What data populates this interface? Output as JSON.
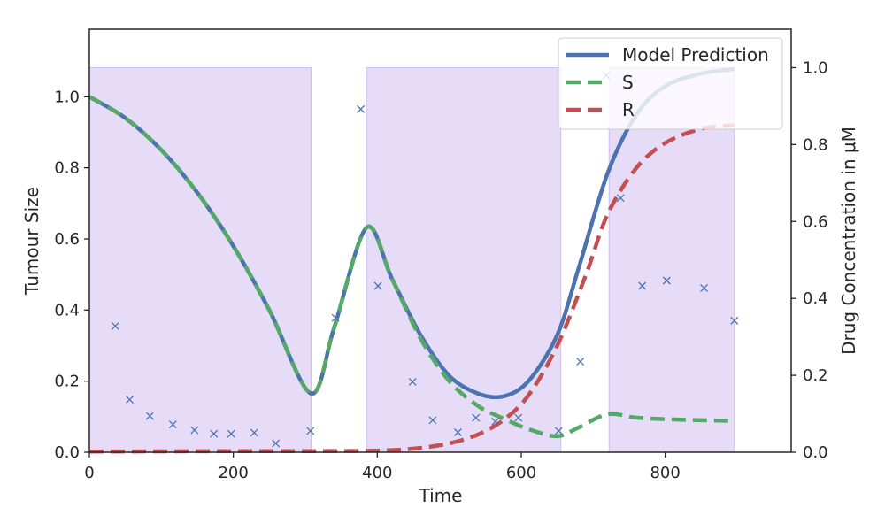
{
  "chart_data": {
    "type": "line",
    "xlabel": "Time",
    "ylabel": "Tumour Size",
    "y2label": "Drug Concentration in μM",
    "xlim": [
      0,
      975
    ],
    "ylim": [
      0,
      1.19
    ],
    "y2lim": [
      0,
      1.1
    ],
    "xticks": [
      0,
      200,
      400,
      600,
      800
    ],
    "yticks": [
      0.0,
      0.2,
      0.4,
      0.6,
      0.8,
      1.0
    ],
    "y2ticks": [
      0.0,
      0.2,
      0.4,
      0.6,
      0.8,
      1.0
    ],
    "grid": false,
    "legend_position": "top-right",
    "treatment_periods": [
      {
        "start": 0,
        "end": 308,
        "concentration": 1.0
      },
      {
        "start": 385,
        "end": 655,
        "concentration": 1.0
      },
      {
        "start": 722,
        "end": 896,
        "concentration": 1.0
      }
    ],
    "series": [
      {
        "name": "Model Prediction",
        "style": "solid",
        "color": "#4c72b0",
        "x": [
          0,
          50,
          100,
          150,
          200,
          250,
          308,
          340,
          385,
          420,
          460,
          500,
          540,
          575,
          610,
          650,
          680,
          720,
          760,
          800,
          850,
          896
        ],
        "y": [
          1.0,
          0.94,
          0.85,
          0.73,
          0.58,
          0.4,
          0.165,
          0.35,
          0.632,
          0.49,
          0.33,
          0.215,
          0.165,
          0.157,
          0.2,
          0.33,
          0.52,
          0.785,
          0.95,
          1.03,
          1.065,
          1.078
        ]
      },
      {
        "name": "S",
        "style": "dashed",
        "color": "#55a868",
        "x": [
          0,
          50,
          100,
          150,
          200,
          250,
          308,
          340,
          385,
          420,
          460,
          500,
          540,
          575,
          610,
          650,
          680,
          720,
          760,
          800,
          850,
          896
        ],
        "y": [
          1.0,
          0.94,
          0.85,
          0.73,
          0.58,
          0.4,
          0.165,
          0.35,
          0.632,
          0.49,
          0.32,
          0.2,
          0.13,
          0.095,
          0.065,
          0.045,
          0.07,
          0.107,
          0.097,
          0.093,
          0.09,
          0.088
        ]
      },
      {
        "name": "R",
        "style": "dashed",
        "color": "#c44e52",
        "x": [
          0,
          200,
          385,
          450,
          500,
          540,
          575,
          610,
          650,
          690,
          720,
          760,
          800,
          850,
          896
        ],
        "y": [
          0.002,
          0.003,
          0.004,
          0.01,
          0.025,
          0.05,
          0.09,
          0.16,
          0.3,
          0.5,
          0.67,
          0.8,
          0.87,
          0.91,
          0.92
        ]
      }
    ],
    "measurements": {
      "marker": "x",
      "color": "#4c72b0",
      "x": [
        36,
        56,
        84,
        116,
        146,
        173,
        197,
        229,
        259,
        307,
        342,
        377,
        401,
        449,
        477,
        512,
        537,
        564,
        596,
        652,
        682,
        718,
        738,
        768,
        802,
        854,
        896
      ],
      "y": [
        0.355,
        0.148,
        0.102,
        0.078,
        0.062,
        0.052,
        0.052,
        0.055,
        0.025,
        0.06,
        0.378,
        0.965,
        0.468,
        0.198,
        0.09,
        0.056,
        0.097,
        0.086,
        0.097,
        0.06,
        0.255,
        1.06,
        0.715,
        0.468,
        0.483,
        0.462,
        0.37
      ]
    }
  }
}
